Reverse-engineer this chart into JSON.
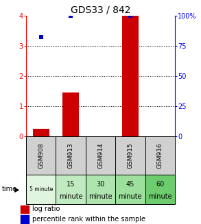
{
  "title": "GDS33 / 842",
  "gsm_labels": [
    "GSM908",
    "GSM913",
    "GSM914",
    "GSM915",
    "GSM916"
  ],
  "log_ratio": [
    0.25,
    1.45,
    0.0,
    4.0,
    0.0
  ],
  "percentile_rank": [
    82.5,
    100.0,
    null,
    100.0,
    null
  ],
  "bar_color": "#cc0000",
  "dot_color": "#0000cc",
  "left_ylim": [
    0,
    4
  ],
  "right_ylim": [
    0,
    100
  ],
  "left_yticks": [
    0,
    1,
    2,
    3,
    4
  ],
  "right_yticks": [
    0,
    25,
    50,
    75,
    100
  ],
  "right_yticklabels": [
    "0",
    "25",
    "50",
    "75",
    "100%"
  ],
  "gsm_bg_color": "#d0d0d0",
  "time_bg_colors": [
    "#e0f5e0",
    "#c0eac0",
    "#aee5ae",
    "#9de09d",
    "#6dcc6d"
  ],
  "bar_width": 0.55,
  "title_fontsize": 10,
  "axis_fontsize": 7,
  "legend_fontsize": 7
}
